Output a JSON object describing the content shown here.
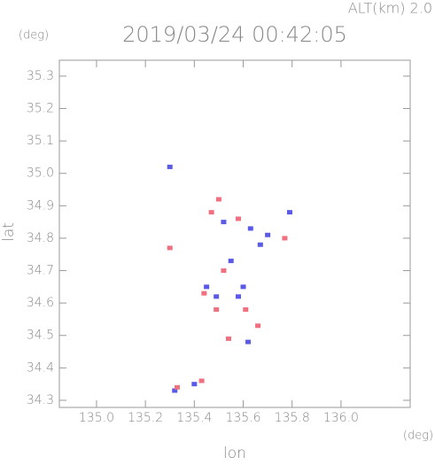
{
  "chart_data": {
    "type": "scatter",
    "title": "2019/03/24 00:42:05",
    "subtitle": "ALT(km) 2.0",
    "x_label": "lon",
    "y_label": "lat",
    "x_unit": "(deg)",
    "y_unit": "(deg)",
    "xlim": [
      134.848,
      136.283
    ],
    "ylim": [
      34.278,
      35.349
    ],
    "xticks": [
      {
        "value": 135,
        "label": "135.0"
      },
      135.2,
      135.4,
      135.6,
      135.8,
      {
        "value": 136,
        "label": "136.0"
      }
    ],
    "yticks": [
      34.3,
      34.4,
      34.5,
      34.6,
      34.7,
      34.8,
      34.9,
      {
        "value": 35,
        "label": "35.0"
      },
      35.1,
      35.2,
      35.3
    ],
    "series": [
      {
        "color": "#5a5ae6",
        "x": [
          135.3,
          135.62,
          135.32,
          135.79,
          135.45,
          135.58,
          135.6,
          135.67,
          135.52,
          135.4,
          135.55,
          135.49,
          135.63,
          135.7
        ],
        "values": [
          35.02,
          34.48,
          34.33,
          34.88,
          34.65,
          34.62,
          34.65,
          34.78,
          34.85,
          34.35,
          34.73,
          34.62,
          34.83,
          34.81
        ]
      },
      {
        "color": "#f07080",
        "x": [
          135.5,
          135.3,
          135.33,
          135.61,
          135.52,
          135.44,
          135.77,
          135.43,
          135.66,
          135.49,
          135.58,
          135.47,
          135.54
        ],
        "values": [
          34.92,
          34.77,
          34.34,
          34.58,
          34.7,
          34.63,
          34.8,
          34.36,
          34.53,
          34.58,
          34.86,
          34.88,
          34.49
        ]
      }
    ]
  }
}
